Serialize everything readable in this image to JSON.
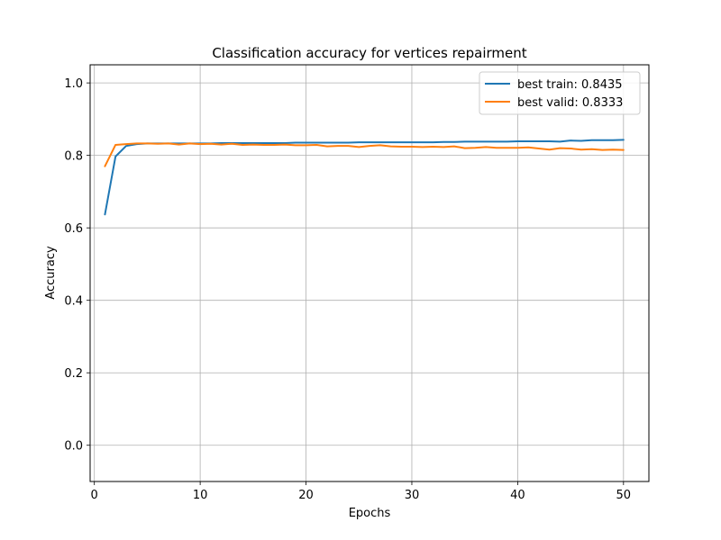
{
  "chart_data": {
    "type": "line",
    "title": "Classification accuracy for vertices repairment",
    "xlabel": "Epochs",
    "ylabel": "Accuracy",
    "xlim": [
      -0.4,
      52.4
    ],
    "ylim": [
      -0.1,
      1.05
    ],
    "xticks": [
      0,
      10,
      20,
      30,
      40,
      50
    ],
    "yticks": [
      0.0,
      0.2,
      0.4,
      0.6,
      0.8,
      1.0
    ],
    "ytick_labels": [
      "0.0",
      "0.2",
      "0.4",
      "0.6",
      "0.8",
      "1.0"
    ],
    "grid": true,
    "legend_position": "top-right",
    "x": [
      1,
      2,
      3,
      4,
      5,
      6,
      7,
      8,
      9,
      10,
      11,
      12,
      13,
      14,
      15,
      16,
      17,
      18,
      19,
      20,
      21,
      22,
      23,
      24,
      25,
      26,
      27,
      28,
      29,
      30,
      31,
      32,
      33,
      34,
      35,
      36,
      37,
      38,
      39,
      40,
      41,
      42,
      43,
      44,
      45,
      46,
      47,
      48,
      49,
      50
    ],
    "series": [
      {
        "name": "best train: 0.8435",
        "color": "#1f77b4",
        "values": [
          0.637,
          0.797,
          0.826,
          0.831,
          0.833,
          0.833,
          0.833,
          0.833,
          0.833,
          0.833,
          0.833,
          0.834,
          0.834,
          0.834,
          0.834,
          0.834,
          0.834,
          0.834,
          0.835,
          0.835,
          0.835,
          0.835,
          0.835,
          0.835,
          0.836,
          0.836,
          0.836,
          0.836,
          0.836,
          0.836,
          0.836,
          0.836,
          0.837,
          0.837,
          0.838,
          0.838,
          0.838,
          0.838,
          0.838,
          0.839,
          0.839,
          0.839,
          0.839,
          0.838,
          0.841,
          0.84,
          0.842,
          0.842,
          0.842,
          0.843
        ]
      },
      {
        "name": "best valid: 0.8333",
        "color": "#ff7f0e",
        "values": [
          0.77,
          0.829,
          0.831,
          0.833,
          0.833,
          0.832,
          0.833,
          0.83,
          0.833,
          0.831,
          0.832,
          0.83,
          0.832,
          0.829,
          0.83,
          0.829,
          0.829,
          0.83,
          0.828,
          0.828,
          0.829,
          0.825,
          0.826,
          0.826,
          0.823,
          0.826,
          0.828,
          0.825,
          0.824,
          0.824,
          0.823,
          0.824,
          0.823,
          0.825,
          0.82,
          0.821,
          0.823,
          0.821,
          0.821,
          0.821,
          0.822,
          0.819,
          0.816,
          0.82,
          0.819,
          0.816,
          0.817,
          0.815,
          0.816,
          0.815
        ]
      }
    ]
  }
}
